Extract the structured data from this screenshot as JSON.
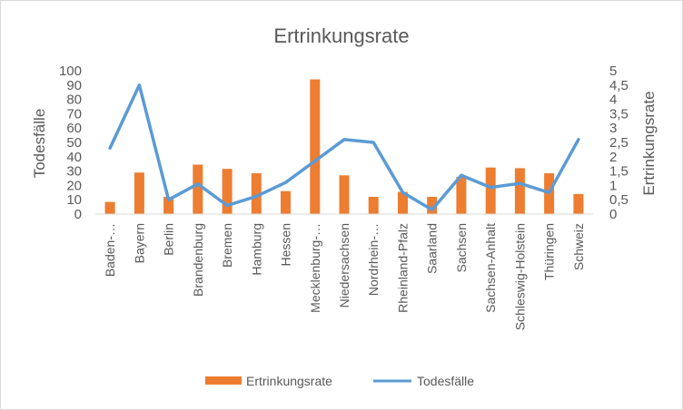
{
  "chart_data": {
    "type": "bar+line",
    "title": "Ertrinkungsrate",
    "categories": [
      "Baden-…",
      "Bayern",
      "Berlin",
      "Brandenburg",
      "Bremen",
      "Hamburg",
      "Hessen",
      "Mecklenburg-…",
      "Niedersachsen",
      "Nordrhein-…",
      "Rheinland-Pfalz",
      "Saarland",
      "Sachsen",
      "Sachsen-Anhalt",
      "Schleswig-Holstein",
      "Thüringen",
      "Schweiz"
    ],
    "y_left": {
      "label": "Todesfälle",
      "ylim": [
        0,
        100
      ],
      "ticks": [
        "0",
        "10",
        "20",
        "30",
        "40",
        "50",
        "60",
        "70",
        "80",
        "90",
        "100"
      ]
    },
    "y_right": {
      "label": "Ertrinkungsrate",
      "ylim": [
        0,
        5
      ],
      "ticks": [
        "0",
        "0,5",
        "1",
        "1,5",
        "2",
        "2,5",
        "3",
        "3,5",
        "4",
        "4,5",
        "5"
      ]
    },
    "series": [
      {
        "name": "Ertrinkungsrate",
        "type": "bar",
        "axis": "left",
        "color": "#ED7D31",
        "values": [
          8.5,
          29,
          12,
          34.5,
          31.5,
          28.5,
          16,
          94,
          27,
          12,
          15.5,
          12,
          26,
          32.5,
          32,
          28.5,
          14
        ]
      },
      {
        "name": "Todesfälle",
        "type": "line",
        "axis": "right",
        "color": "#5B9BD5",
        "values": [
          2.3,
          4.5,
          0.5,
          1.05,
          0.3,
          0.62,
          1.1,
          1.85,
          2.6,
          2.5,
          0.75,
          0.15,
          1.35,
          0.93,
          1.07,
          0.75,
          2.6
        ]
      }
    ],
    "grid": false,
    "legend": "bottom"
  }
}
